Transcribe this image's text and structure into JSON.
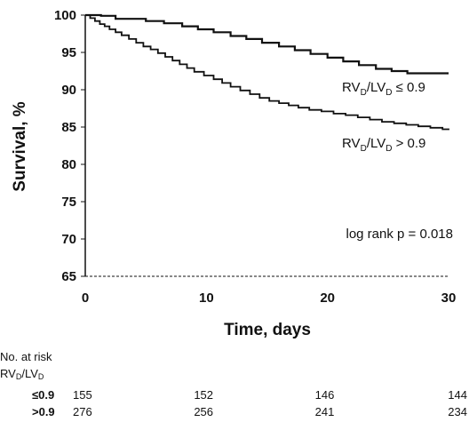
{
  "chart_data": {
    "type": "line",
    "step": true,
    "xlabel": "Time, days",
    "ylabel": "Survival, %",
    "xlim": [
      0,
      30
    ],
    "ylim": [
      65,
      100
    ],
    "xticks": [
      "0",
      "10",
      "20",
      "30"
    ],
    "yticks": [
      "100",
      "95",
      "90",
      "85",
      "80",
      "75",
      "70",
      "65"
    ],
    "grid": false,
    "annotation": "log rank p = 0.018",
    "series": [
      {
        "name": "RVD/LVD ≤ 0.9",
        "label_main": "RV",
        "label_sub1": "D",
        "label_mid": "/LV",
        "label_sub2": "D",
        "label_tail": " ≤ 0.9",
        "color": "#111111",
        "x": [
          0,
          1.3,
          2.5,
          5,
          6.5,
          8,
          9.3,
          10.6,
          12,
          13.3,
          14.6,
          16,
          17.3,
          18.6,
          20,
          21.3,
          22.6,
          24,
          25.3,
          26.6,
          30
        ],
        "y": [
          100,
          99.9,
          99.5,
          99.2,
          98.9,
          98.5,
          98.1,
          97.7,
          97.2,
          96.8,
          96.3,
          95.8,
          95.3,
          94.8,
          94.3,
          93.8,
          93.3,
          92.8,
          92.5,
          92.2,
          92.2
        ]
      },
      {
        "name": "RVD/LVD > 0.9",
        "label_main": "RV",
        "label_sub1": "D",
        "label_mid": "/LV",
        "label_sub2": "D",
        "label_tail": " > 0.9",
        "color": "#111111",
        "x": [
          0,
          0.4,
          0.8,
          1.2,
          1.6,
          2.0,
          2.5,
          3.0,
          3.6,
          4.2,
          4.8,
          5.4,
          6.0,
          6.6,
          7.2,
          7.8,
          8.4,
          9.0,
          9.8,
          10.6,
          11.3,
          12.0,
          12.8,
          13.6,
          14.4,
          15.2,
          16.0,
          16.8,
          17.6,
          18.5,
          19.5,
          20.5,
          21.5,
          22.5,
          23.5,
          24.5,
          25.5,
          26.5,
          27.5,
          28.5,
          29.5,
          30
        ],
        "y": [
          100,
          99.6,
          99.2,
          98.8,
          98.5,
          98.1,
          97.7,
          97.3,
          96.8,
          96.3,
          95.8,
          95.4,
          94.9,
          94.4,
          93.9,
          93.4,
          92.9,
          92.4,
          91.9,
          91.4,
          90.9,
          90.4,
          89.9,
          89.4,
          88.9,
          88.5,
          88.2,
          87.9,
          87.6,
          87.3,
          87.1,
          86.8,
          86.6,
          86.3,
          86.0,
          85.7,
          85.5,
          85.3,
          85.1,
          84.9,
          84.7,
          84.6
        ]
      }
    ]
  },
  "risk_table": {
    "title": "No. at risk",
    "group_main": "RV",
    "group_sub1": "D",
    "group_mid": "/LV",
    "group_sub2": "D",
    "rows": [
      {
        "label": "≤0.9",
        "values": [
          "155",
          "152",
          "146",
          "144"
        ]
      },
      {
        "label": ">0.9",
        "values": [
          "276",
          "256",
          "241",
          "234"
        ]
      }
    ]
  }
}
